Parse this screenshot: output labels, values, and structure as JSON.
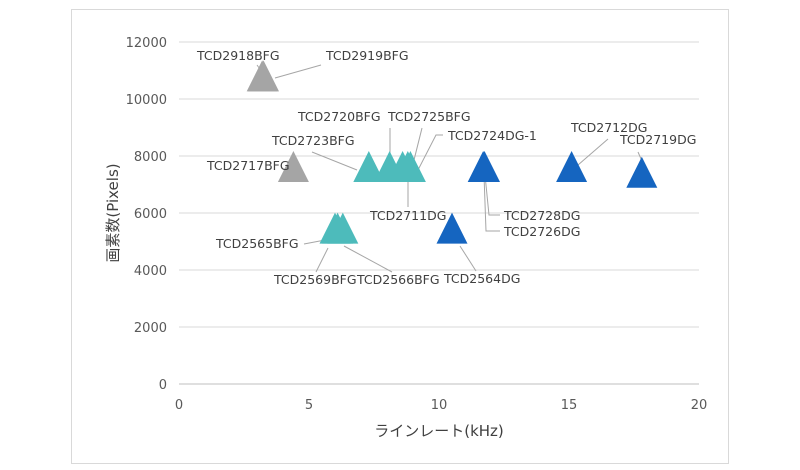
{
  "chart_data": {
    "type": "scatter",
    "xlabel": "ラインレート(kHz)",
    "ylabel": "画素数(Pixels)",
    "xlim": [
      0,
      20
    ],
    "ylim": [
      0,
      12000
    ],
    "x_ticks": [
      0,
      5,
      10,
      15,
      20
    ],
    "y_ticks": [
      0,
      2000,
      4000,
      6000,
      8000,
      10000,
      12000
    ],
    "grid": "horizontal",
    "marker": "triangle",
    "colors": {
      "gray": "#a5a5a5",
      "teal": "#4dbbbb",
      "blue": "#1565c0",
      "axis": "#bfbfbf",
      "grid": "#d9d9d9",
      "leader": "#a6a6a6"
    },
    "points": [
      {
        "label": "TCD2918BFG",
        "x": 3.2,
        "y": 10680,
        "color": "gray"
      },
      {
        "label": "TCD2919BFG",
        "x": 3.25,
        "y": 10680,
        "color": "gray"
      },
      {
        "label": "TCD2717BFG",
        "x": 4.4,
        "y": 7500,
        "color": "gray"
      },
      {
        "label": "TCD2723BFG",
        "x": 7.3,
        "y": 7500,
        "color": "teal"
      },
      {
        "label": "TCD2720BFG",
        "x": 8.1,
        "y": 7500,
        "color": "teal"
      },
      {
        "label": "TCD2725BFG",
        "x": 8.6,
        "y": 7500,
        "color": "teal"
      },
      {
        "label": "TCD2711DG",
        "x": 8.8,
        "y": 7500,
        "color": "teal"
      },
      {
        "label": "TCD2724DG-1",
        "x": 8.9,
        "y": 7500,
        "color": "teal"
      },
      {
        "label": "TCD2565BFG",
        "x": 6.0,
        "y": 5340,
        "color": "teal"
      },
      {
        "label": "TCD2569BFG",
        "x": 6.1,
        "y": 5340,
        "color": "teal"
      },
      {
        "label": "TCD2566BFG",
        "x": 6.3,
        "y": 5340,
        "color": "teal"
      },
      {
        "label": "TCD2564DG",
        "x": 10.5,
        "y": 5340,
        "color": "blue"
      },
      {
        "label": "TCD2728DG",
        "x": 11.7,
        "y": 7500,
        "color": "blue"
      },
      {
        "label": "TCD2726DG",
        "x": 11.75,
        "y": 7500,
        "color": "blue"
      },
      {
        "label": "TCD2712DG",
        "x": 15.1,
        "y": 7500,
        "color": "blue"
      },
      {
        "label": "TCD2719DG",
        "x": 17.8,
        "y": 7300,
        "color": "blue"
      }
    ]
  }
}
